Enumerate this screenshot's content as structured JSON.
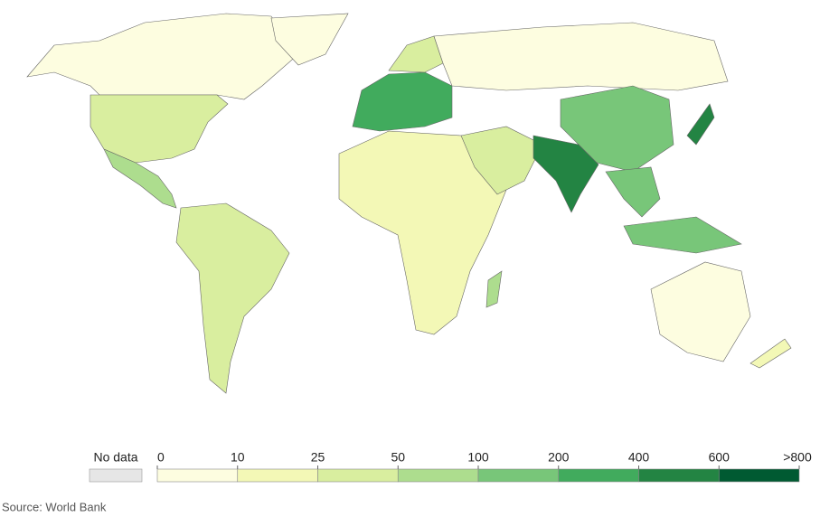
{
  "legend": {
    "no_data_label": "No data",
    "no_data_color": "#e6e6e6",
    "ticks": [
      0,
      10,
      25,
      50,
      100,
      200,
      400,
      600,
      {
        "value": 800,
        "label": ">800"
      }
    ],
    "colors": [
      "#fdfde0",
      "#f3f8b6",
      "#d9ee9f",
      "#addd8e",
      "#78c679",
      "#41ab5d",
      "#238443",
      "#005a32"
    ]
  },
  "source": "Source: World Bank"
}
